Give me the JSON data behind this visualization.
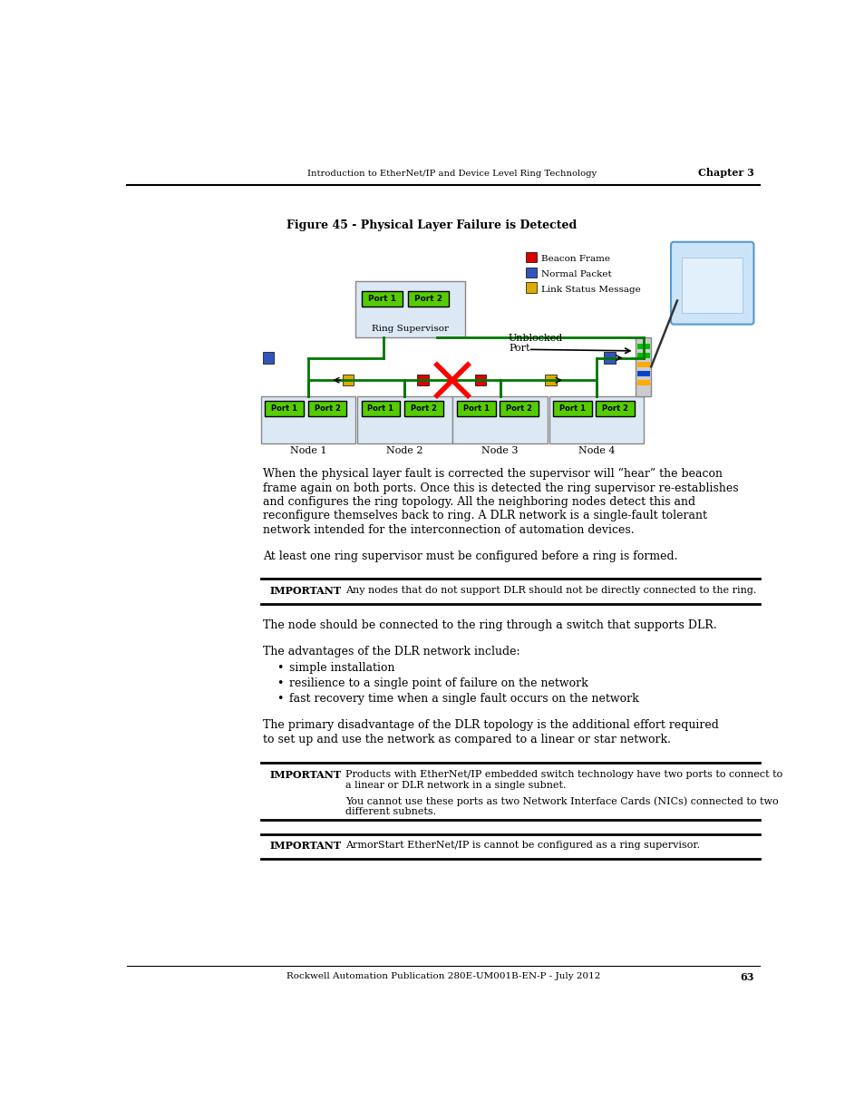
{
  "page_width": 9.54,
  "page_height": 12.35,
  "bg_color": "#ffffff",
  "header_text": "Introduction to EtherNet/IP and Device Level Ring Technology",
  "header_chapter": "Chapter 3",
  "figure_title": "Figure 45 - Physical Layer Failure is Detected",
  "body_text_1a": "When the physical layer fault is corrected the supervisor will “hear” the beacon",
  "body_text_1b": "frame again on both ports. Once this is detected the ring supervisor re-establishes",
  "body_text_1c": "and configures the ring topology. All the neighboring nodes detect this and",
  "body_text_1d": "reconfigure themselves back to ring. A DLR network is a single-fault tolerant",
  "body_text_1e": "network intended for the interconnection of automation devices.",
  "body_text_2": "At least one ring supervisor must be configured before a ring is formed.",
  "important_1_label": "IMPORTANT",
  "important_1_text": "Any nodes that do not support DLR should not be directly connected to the ring.",
  "body_text_3": "The node should be connected to the ring through a switch that supports DLR.",
  "body_text_4": "The advantages of the DLR network include:",
  "bullet_1": "simple installation",
  "bullet_2": "resilience to a single point of failure on the network",
  "bullet_3": "fast recovery time when a single fault occurs on the network",
  "body_text_5a": "The primary disadvantage of the DLR topology is the additional effort required",
  "body_text_5b": "to set up and use the network as compared to a linear or star network.",
  "important_2_label": "IMPORTANT",
  "important_2_text_1a": "Products with EtherNet/IP embedded switch technology have two ports to connect to",
  "important_2_text_1b": "a linear or DLR network in a single subnet.",
  "important_2_text_2a": "You cannot use these ports as two Network Interface Cards (NICs) connected to two",
  "important_2_text_2b": "different subnets.",
  "important_3_label": "IMPORTANT",
  "important_3_text": "ArmorStart EtherNet/IP is cannot be configured as a ring supervisor.",
  "footer_text": "Rockwell Automation Publication 280E-UM001B-EN-P - July 2012",
  "footer_page": "63",
  "green_fill": "#55cc00",
  "green_border": "#007700",
  "node_fill": "#ddeedd",
  "red_color": "#dd0000",
  "blue_color": "#3355bb",
  "yellow_color": "#ddaa00",
  "legend_red": "#dd0000",
  "legend_blue": "#3355bb",
  "legend_yellow": "#ddaa00"
}
